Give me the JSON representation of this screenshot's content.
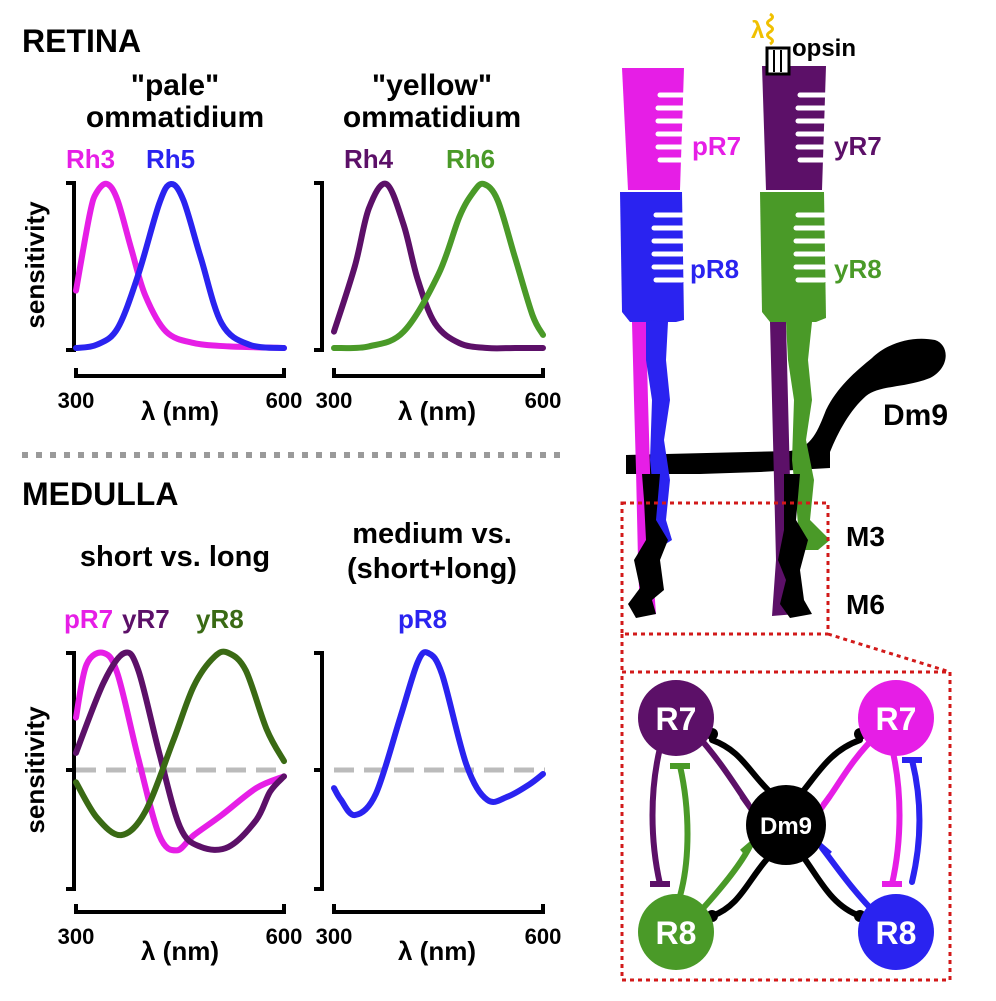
{
  "colors": {
    "magenta": "#e61ee6",
    "blue": "#2a23f0",
    "purple": "#5c1068",
    "green": "#4a9a28",
    "darkgreen": "#3a6a14",
    "black": "#000000",
    "gray": "#bbbbbb",
    "red_dotted": "#d21a1a",
    "yellow": "#f0c000"
  },
  "sections": {
    "retina": "RETINA",
    "medulla": "MEDULLA"
  },
  "panel_titles": {
    "pale_l1": "\"pale\"",
    "pale_l2": "ommatidium",
    "yellow_l1": "\"yellow\"",
    "yellow_l2": "ommatidium",
    "short_long": "short vs. long",
    "medium_l1": "medium vs.",
    "medium_l2": "(short+long)"
  },
  "axis": {
    "ylabel": "sensitivity",
    "xlabel": "λ (nm)",
    "xmin_label": "300",
    "xmax_label": "600"
  },
  "chart_data": [
    {
      "type": "line",
      "panel": "pale",
      "xlim": [
        300,
        600
      ],
      "series": [
        {
          "name": "Rh3",
          "color": "magenta",
          "x": [
            300,
            320,
            330,
            345,
            360,
            380,
            400,
            430,
            470,
            520,
            600
          ],
          "y": [
            0.35,
            0.82,
            0.95,
            1.0,
            0.9,
            0.6,
            0.32,
            0.1,
            0.03,
            0.01,
            0.0
          ]
        },
        {
          "name": "Rh5",
          "color": "blue",
          "x": [
            300,
            330,
            360,
            390,
            420,
            437,
            455,
            480,
            510,
            550,
            600
          ],
          "y": [
            0.0,
            0.02,
            0.12,
            0.45,
            0.88,
            1.0,
            0.9,
            0.55,
            0.15,
            0.02,
            0.0
          ]
        }
      ]
    },
    {
      "type": "line",
      "panel": "yellow",
      "xlim": [
        300,
        600
      ],
      "series": [
        {
          "name": "Rh4",
          "color": "purple",
          "x": [
            300,
            330,
            350,
            375,
            400,
            420,
            445,
            480,
            520,
            560,
            600
          ],
          "y": [
            0.1,
            0.5,
            0.85,
            1.0,
            0.75,
            0.42,
            0.15,
            0.03,
            0.0,
            0.0,
            0.0
          ]
        },
        {
          "name": "Rh6",
          "color": "green",
          "x": [
            300,
            350,
            400,
            450,
            480,
            500,
            515,
            535,
            560,
            585,
            600
          ],
          "y": [
            0.0,
            0.01,
            0.1,
            0.45,
            0.8,
            0.95,
            1.0,
            0.9,
            0.55,
            0.2,
            0.08
          ]
        }
      ]
    },
    {
      "type": "line",
      "panel": "short_long",
      "xlim": [
        300,
        600
      ],
      "ylim": [
        -1,
        1
      ],
      "baseline": 0,
      "series": [
        {
          "name": "pR7",
          "color": "magenta",
          "x": [
            300,
            315,
            340,
            360,
            390,
            420,
            445,
            470,
            510,
            560,
            600
          ],
          "y": [
            0.45,
            0.9,
            1.0,
            0.82,
            0.1,
            -0.55,
            -0.68,
            -0.55,
            -0.38,
            -0.15,
            -0.05
          ]
        },
        {
          "name": "yR7",
          "color": "purple",
          "x": [
            300,
            340,
            370,
            390,
            420,
            450,
            480,
            520,
            560,
            580,
            600
          ],
          "y": [
            0.15,
            0.75,
            1.0,
            0.85,
            0.15,
            -0.48,
            -0.65,
            -0.65,
            -0.42,
            -0.18,
            -0.05
          ]
        },
        {
          "name": "yR8",
          "color": "darkgreen",
          "x": [
            300,
            330,
            365,
            400,
            440,
            470,
            500,
            520,
            545,
            575,
            600
          ],
          "y": [
            -0.1,
            -0.4,
            -0.55,
            -0.35,
            0.25,
            0.72,
            0.97,
            1.0,
            0.85,
            0.35,
            0.08
          ]
        }
      ]
    },
    {
      "type": "line",
      "panel": "medium",
      "xlim": [
        300,
        600
      ],
      "ylim": [
        -1,
        1
      ],
      "baseline": 0,
      "series": [
        {
          "name": "pR8",
          "color": "blue",
          "x": [
            300,
            310,
            330,
            360,
            395,
            420,
            435,
            455,
            490,
            520,
            550,
            580,
            600
          ],
          "y": [
            -0.15,
            -0.25,
            -0.38,
            -0.2,
            0.45,
            0.92,
            1.0,
            0.82,
            0.05,
            -0.25,
            -0.22,
            -0.12,
            -0.03
          ]
        }
      ]
    }
  ],
  "cells": {
    "pR7": "pR7",
    "pR8": "pR8",
    "yR7": "yR7",
    "yR8": "yR8",
    "dm9": "Dm9",
    "m3": "M3",
    "m6": "M6",
    "opsin": "opsin",
    "lambda": "λ"
  },
  "circuit": {
    "r7": "R7",
    "r8": "R8",
    "dm9": "Dm9"
  }
}
